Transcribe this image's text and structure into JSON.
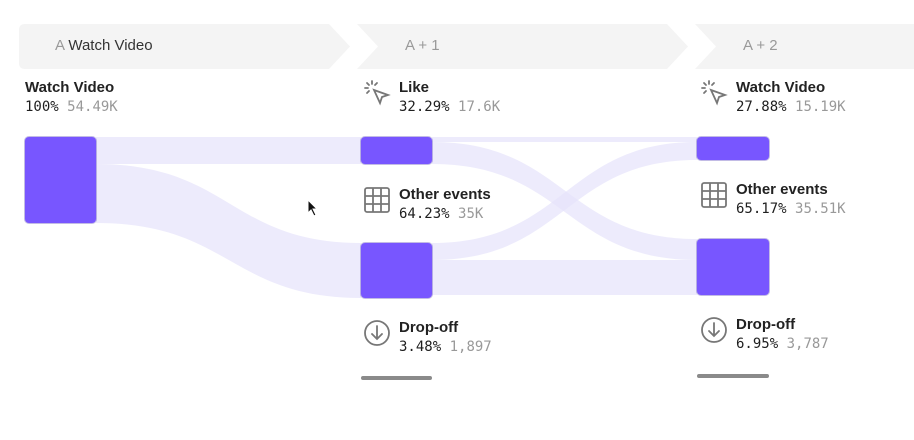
{
  "header": {
    "steps": [
      {
        "prefix": "A",
        "label": "Watch Video"
      },
      {
        "label": "A + 1"
      },
      {
        "label": "A + 2"
      }
    ]
  },
  "colors": {
    "bar": "#7856ff",
    "flow": "#ece9fc",
    "dropoff": "#8a8a8a"
  },
  "columns": [
    {
      "nodes": [
        {
          "name": "Watch Video",
          "percent": "100%",
          "count": "54.49K",
          "icon": null
        }
      ]
    },
    {
      "nodes": [
        {
          "name": "Like",
          "percent": "32.29%",
          "count": "17.6K",
          "icon": "click-icon"
        },
        {
          "name": "Other events",
          "percent": "64.23%",
          "count": "35K",
          "icon": "grid-icon"
        },
        {
          "name": "Drop-off",
          "percent": "3.48%",
          "count": "1,897",
          "icon": "arrow-down-circle-icon"
        }
      ]
    },
    {
      "nodes": [
        {
          "name": "Watch Video",
          "percent": "27.88%",
          "count": "15.19K",
          "icon": "click-icon"
        },
        {
          "name": "Other events",
          "percent": "65.17%",
          "count": "35.51K",
          "icon": "grid-icon"
        },
        {
          "name": "Drop-off",
          "percent": "6.95%",
          "count": "3,787",
          "icon": "arrow-down-circle-icon"
        }
      ]
    }
  ]
}
